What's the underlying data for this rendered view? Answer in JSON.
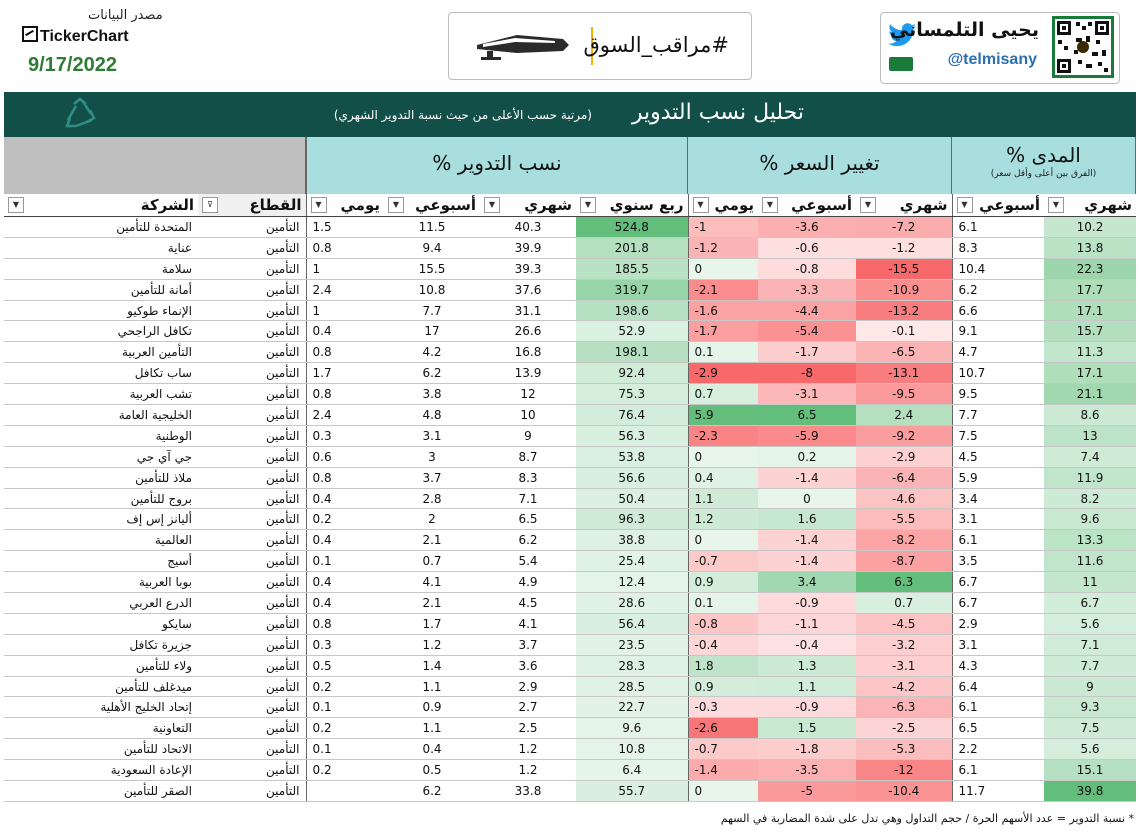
{
  "header": {
    "source_label": "مصدر البيانات",
    "ticker_logo": "TickerChart",
    "date": "9/17/2022",
    "hashtag": "#مراقب_السوق",
    "author_name": "يحيى التلمساني",
    "author_handle": "@telmisany"
  },
  "title": {
    "main": "تحليل نسب التدوير",
    "subtitle": "(مرتبة حسب الأعلى من حيث نسبة التدوير الشهري)"
  },
  "groups": {
    "turnover": "نسب التدوير %",
    "price_change": "تغيير السعر %",
    "range": "المدى %",
    "range_sub": "(الفرق بين أعلى وأقل سعر)"
  },
  "columns": {
    "company": "الشركة",
    "sector": "القطاع",
    "t_daily": "يومي",
    "t_weekly": "أسبوعي",
    "t_monthly": "شهري",
    "t_quarterly": "ربع سنوي",
    "p_daily": "يومي",
    "p_weekly": "أسبوعي",
    "p_monthly": "شهري",
    "r_weekly": "أسبوعي",
    "r_monthly": "شهري"
  },
  "rows": [
    {
      "company": "المتحدة للتأمين",
      "sector": "التأمين",
      "td": "1.5",
      "tw": "11.5",
      "tm": "40.3",
      "tq": "524.8",
      "pd": "-1",
      "pw": "-3.6",
      "pm": "-7.2",
      "rw": "6.1",
      "rm": "10.2"
    },
    {
      "company": "عناية",
      "sector": "التأمين",
      "td": "0.8",
      "tw": "9.4",
      "tm": "39.9",
      "tq": "201.8",
      "pd": "-1.2",
      "pw": "-0.6",
      "pm": "-1.2",
      "rw": "8.3",
      "rm": "13.8"
    },
    {
      "company": "سلامة",
      "sector": "التأمين",
      "td": "1",
      "tw": "15.5",
      "tm": "39.3",
      "tq": "185.5",
      "pd": "0",
      "pw": "-0.8",
      "pm": "-15.5",
      "rw": "10.4",
      "rm": "22.3"
    },
    {
      "company": "أمانة للتأمين",
      "sector": "التأمين",
      "td": "2.4",
      "tw": "10.8",
      "tm": "37.6",
      "tq": "319.7",
      "pd": "-2.1",
      "pw": "-3.3",
      "pm": "-10.9",
      "rw": "6.2",
      "rm": "17.7"
    },
    {
      "company": "الإنماء طوكيو",
      "sector": "التأمين",
      "td": "1",
      "tw": "7.7",
      "tm": "31.1",
      "tq": "198.6",
      "pd": "-1.6",
      "pw": "-4.4",
      "pm": "-13.2",
      "rw": "6.6",
      "rm": "17.1"
    },
    {
      "company": "تكافل الراجحي",
      "sector": "التأمين",
      "td": "0.4",
      "tw": "17",
      "tm": "26.6",
      "tq": "52.9",
      "pd": "-1.7",
      "pw": "-5.4",
      "pm": "-0.1",
      "rw": "9.1",
      "rm": "15.7"
    },
    {
      "company": "التأمين العربية",
      "sector": "التأمين",
      "td": "0.8",
      "tw": "4.2",
      "tm": "16.8",
      "tq": "198.1",
      "pd": "0.1",
      "pw": "-1.7",
      "pm": "-6.5",
      "rw": "4.7",
      "rm": "11.3"
    },
    {
      "company": "ساب تكافل",
      "sector": "التأمين",
      "td": "1.7",
      "tw": "6.2",
      "tm": "13.9",
      "tq": "92.4",
      "pd": "-2.9",
      "pw": "-8",
      "pm": "-13.1",
      "rw": "10.7",
      "rm": "17.1"
    },
    {
      "company": "تشب العربية",
      "sector": "التأمين",
      "td": "0.8",
      "tw": "3.8",
      "tm": "12",
      "tq": "75.3",
      "pd": "0.7",
      "pw": "-3.1",
      "pm": "-9.5",
      "rw": "9.5",
      "rm": "21.1"
    },
    {
      "company": "الخليجية العامة",
      "sector": "التأمين",
      "td": "2.4",
      "tw": "4.8",
      "tm": "10",
      "tq": "76.4",
      "pd": "5.9",
      "pw": "6.5",
      "pm": "2.4",
      "rw": "7.7",
      "rm": "8.6"
    },
    {
      "company": "الوطنية",
      "sector": "التأمين",
      "td": "0.3",
      "tw": "3.1",
      "tm": "9",
      "tq": "56.3",
      "pd": "-2.3",
      "pw": "-5.9",
      "pm": "-9.2",
      "rw": "7.5",
      "rm": "13"
    },
    {
      "company": "جي آي جي",
      "sector": "التأمين",
      "td": "0.6",
      "tw": "3",
      "tm": "8.7",
      "tq": "53.8",
      "pd": "0",
      "pw": "0.2",
      "pm": "-2.9",
      "rw": "4.5",
      "rm": "7.4"
    },
    {
      "company": "ملاذ للتأمين",
      "sector": "التأمين",
      "td": "0.8",
      "tw": "3.7",
      "tm": "8.3",
      "tq": "56.6",
      "pd": "0.4",
      "pw": "-1.4",
      "pm": "-6.4",
      "rw": "5.9",
      "rm": "11.9"
    },
    {
      "company": "بروج للتأمين",
      "sector": "التأمين",
      "td": "0.4",
      "tw": "2.8",
      "tm": "7.1",
      "tq": "50.4",
      "pd": "1.1",
      "pw": "0",
      "pm": "-4.6",
      "rw": "3.4",
      "rm": "8.2"
    },
    {
      "company": "أليانز إس إف",
      "sector": "التأمين",
      "td": "0.2",
      "tw": "2",
      "tm": "6.5",
      "tq": "96.3",
      "pd": "1.2",
      "pw": "1.6",
      "pm": "-5.5",
      "rw": "3.1",
      "rm": "9.6"
    },
    {
      "company": "العالمية",
      "sector": "التأمين",
      "td": "0.4",
      "tw": "2.1",
      "tm": "6.2",
      "tq": "38.8",
      "pd": "0",
      "pw": "-1.4",
      "pm": "-8.2",
      "rw": "6.1",
      "rm": "13.3"
    },
    {
      "company": "أسيج",
      "sector": "التأمين",
      "td": "0.1",
      "tw": "0.7",
      "tm": "5.4",
      "tq": "25.4",
      "pd": "-0.7",
      "pw": "-1.4",
      "pm": "-8.7",
      "rw": "3.5",
      "rm": "11.6"
    },
    {
      "company": "بوبا العربية",
      "sector": "التأمين",
      "td": "0.4",
      "tw": "4.1",
      "tm": "4.9",
      "tq": "12.4",
      "pd": "0.9",
      "pw": "3.4",
      "pm": "6.3",
      "rw": "6.7",
      "rm": "11"
    },
    {
      "company": "الدرع العربي",
      "sector": "التأمين",
      "td": "0.4",
      "tw": "2.1",
      "tm": "4.5",
      "tq": "28.6",
      "pd": "0.1",
      "pw": "-0.9",
      "pm": "0.7",
      "rw": "6.7",
      "rm": "6.7"
    },
    {
      "company": "سايكو",
      "sector": "التأمين",
      "td": "0.8",
      "tw": "1.7",
      "tm": "4.1",
      "tq": "56.4",
      "pd": "-0.8",
      "pw": "-1.1",
      "pm": "-4.5",
      "rw": "2.9",
      "rm": "5.6"
    },
    {
      "company": "جزيرة تكافل",
      "sector": "التأمين",
      "td": "0.3",
      "tw": "1.2",
      "tm": "3.7",
      "tq": "23.5",
      "pd": "-0.4",
      "pw": "-0.4",
      "pm": "-3.2",
      "rw": "3.1",
      "rm": "7.1"
    },
    {
      "company": "ولاء للتأمين",
      "sector": "التأمين",
      "td": "0.5",
      "tw": "1.4",
      "tm": "3.6",
      "tq": "28.3",
      "pd": "1.8",
      "pw": "1.3",
      "pm": "-3.1",
      "rw": "4.3",
      "rm": "7.7"
    },
    {
      "company": "ميدغلف للتأمين",
      "sector": "التأمين",
      "td": "0.2",
      "tw": "1.1",
      "tm": "2.9",
      "tq": "28.5",
      "pd": "0.9",
      "pw": "1.1",
      "pm": "-4.2",
      "rw": "6.4",
      "rm": "9"
    },
    {
      "company": "إتحاد الخليج الأهلية",
      "sector": "التأمين",
      "td": "0.1",
      "tw": "0.9",
      "tm": "2.7",
      "tq": "22.7",
      "pd": "-0.3",
      "pw": "-0.9",
      "pm": "-6.3",
      "rw": "6.1",
      "rm": "9.3"
    },
    {
      "company": "التعاونية",
      "sector": "التأمين",
      "td": "0.2",
      "tw": "1.1",
      "tm": "2.5",
      "tq": "9.6",
      "pd": "-2.6",
      "pw": "1.5",
      "pm": "-2.5",
      "rw": "6.5",
      "rm": "7.5"
    },
    {
      "company": "الاتحاد للتأمين",
      "sector": "التأمين",
      "td": "0.1",
      "tw": "0.4",
      "tm": "1.2",
      "tq": "10.8",
      "pd": "-0.7",
      "pw": "-1.8",
      "pm": "-5.3",
      "rw": "2.2",
      "rm": "5.6"
    },
    {
      "company": "الإعادة السعودية",
      "sector": "التأمين",
      "td": "0.2",
      "tw": "0.5",
      "tm": "1.2",
      "tq": "6.4",
      "pd": "-1.4",
      "pw": "-3.5",
      "pm": "-12",
      "rw": "6.1",
      "rm": "15.1"
    },
    {
      "company": "الصقر للتأمين",
      "sector": "التأمين",
      "td": "",
      "tw": "6.2",
      "tm": "33.8",
      "tq": "55.7",
      "pd": "0",
      "pw": "-5",
      "pm": "-10.4",
      "rw": "11.7",
      "rm": "39.8"
    }
  ],
  "footnote": "* نسبة التدوير = عدد الأسهم الحرة / حجم التداول وهي تدل على شدة المضاربة في السهم",
  "colors": {
    "title_bar": "#134f49",
    "header_fill": "#a8dede",
    "positive": "#63be7b",
    "negative": "#f8696b"
  }
}
